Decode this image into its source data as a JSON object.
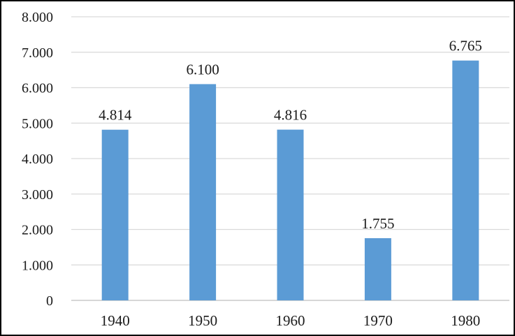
{
  "chart_data": {
    "type": "bar",
    "title": "",
    "xlabel": "",
    "ylabel": "",
    "categories": [
      "1940",
      "1950",
      "1960",
      "1970",
      "1980"
    ],
    "values": [
      4814,
      6100,
      4816,
      1755,
      6765
    ],
    "value_labels": [
      "4.814",
      "6.100",
      "4.816",
      "1.755",
      "6.765"
    ],
    "y_ticks": [
      0,
      1000,
      2000,
      3000,
      4000,
      5000,
      6000,
      7000,
      8000
    ],
    "y_tick_labels": [
      "0",
      "1.000",
      "2.000",
      "3.000",
      "4.000",
      "5.000",
      "6.000",
      "7.000",
      "8.000"
    ],
    "ylim": [
      0,
      8000
    ],
    "grid": true,
    "legend": "none",
    "bar_color": "#5B9BD5"
  }
}
